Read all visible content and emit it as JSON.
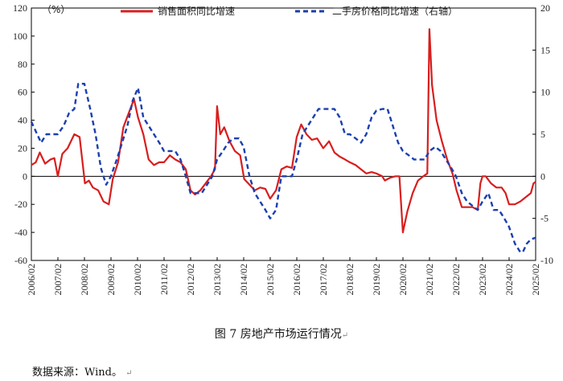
{
  "caption": "图 7  房地产市场运行情况",
  "source": "数据来源：Wind。",
  "edit_mark": "↵",
  "chart_data": {
    "type": "line",
    "unit_label": "（%）",
    "left_axis": {
      "min": -60,
      "max": 120,
      "ticks": [
        -60,
        -40,
        -20,
        0,
        20,
        40,
        60,
        80,
        100,
        120
      ]
    },
    "right_axis": {
      "min": -10,
      "max": 20,
      "ticks": [
        -10,
        -5,
        0,
        5,
        10,
        15,
        20
      ]
    },
    "x_range": [
      2006.083,
      2025.083
    ],
    "x_tick_labels": [
      "2006/02",
      "2007/02",
      "2008/02",
      "2009/02",
      "2010/02",
      "2011/02",
      "2012/02",
      "2013/02",
      "2014/02",
      "2015/02",
      "2016/02",
      "2017/02",
      "2018/02",
      "2019/02",
      "2020/02",
      "2021/02",
      "2022/02",
      "2023/02",
      "2024/02",
      "2025/02"
    ],
    "series": [
      {
        "name": "销售面积同比增速",
        "axis": "left",
        "color": "#d81e1e",
        "style": "solid",
        "points": [
          [
            2006.08,
            8
          ],
          [
            2006.25,
            10
          ],
          [
            2006.4,
            17
          ],
          [
            2006.6,
            9
          ],
          [
            2006.8,
            12
          ],
          [
            2006.95,
            13
          ],
          [
            2007.08,
            0
          ],
          [
            2007.25,
            16
          ],
          [
            2007.45,
            20
          ],
          [
            2007.7,
            30
          ],
          [
            2007.9,
            28
          ],
          [
            2008.1,
            -5
          ],
          [
            2008.25,
            -3
          ],
          [
            2008.4,
            -8
          ],
          [
            2008.6,
            -10
          ],
          [
            2008.8,
            -18
          ],
          [
            2009.0,
            -20
          ],
          [
            2009.15,
            -2
          ],
          [
            2009.35,
            10
          ],
          [
            2009.55,
            35
          ],
          [
            2009.75,
            45
          ],
          [
            2009.95,
            55
          ],
          [
            2010.1,
            42
          ],
          [
            2010.3,
            30
          ],
          [
            2010.5,
            12
          ],
          [
            2010.7,
            8
          ],
          [
            2010.9,
            10
          ],
          [
            2011.08,
            10
          ],
          [
            2011.3,
            15
          ],
          [
            2011.5,
            12
          ],
          [
            2011.7,
            10
          ],
          [
            2011.9,
            5
          ],
          [
            2012.08,
            -10
          ],
          [
            2012.25,
            -13
          ],
          [
            2012.45,
            -10
          ],
          [
            2012.65,
            -5
          ],
          [
            2012.85,
            0
          ],
          [
            2013.0,
            5
          ],
          [
            2013.08,
            50
          ],
          [
            2013.2,
            30
          ],
          [
            2013.35,
            35
          ],
          [
            2013.55,
            25
          ],
          [
            2013.75,
            18
          ],
          [
            2013.95,
            15
          ],
          [
            2014.1,
            -2
          ],
          [
            2014.3,
            -6
          ],
          [
            2014.5,
            -10
          ],
          [
            2014.7,
            -8
          ],
          [
            2014.9,
            -9
          ],
          [
            2015.08,
            -16
          ],
          [
            2015.3,
            -10
          ],
          [
            2015.5,
            5
          ],
          [
            2015.7,
            7
          ],
          [
            2015.9,
            6
          ],
          [
            2016.08,
            28
          ],
          [
            2016.25,
            37
          ],
          [
            2016.45,
            30
          ],
          [
            2016.65,
            26
          ],
          [
            2016.85,
            27
          ],
          [
            2017.08,
            20
          ],
          [
            2017.3,
            25
          ],
          [
            2017.5,
            17
          ],
          [
            2017.7,
            14
          ],
          [
            2017.9,
            12
          ],
          [
            2018.08,
            10
          ],
          [
            2018.3,
            8
          ],
          [
            2018.5,
            5
          ],
          [
            2018.7,
            2
          ],
          [
            2018.9,
            3
          ],
          [
            2019.08,
            2
          ],
          [
            2019.3,
            0
          ],
          [
            2019.4,
            -3
          ],
          [
            2019.6,
            -1
          ],
          [
            2019.8,
            0
          ],
          [
            2019.95,
            0
          ],
          [
            2020.08,
            -40
          ],
          [
            2020.25,
            -25
          ],
          [
            2020.45,
            -12
          ],
          [
            2020.65,
            -3
          ],
          [
            2020.85,
            0
          ],
          [
            2021.0,
            2
          ],
          [
            2021.08,
            105
          ],
          [
            2021.18,
            65
          ],
          [
            2021.35,
            40
          ],
          [
            2021.55,
            25
          ],
          [
            2021.75,
            12
          ],
          [
            2021.95,
            2
          ],
          [
            2022.1,
            -10
          ],
          [
            2022.3,
            -22
          ],
          [
            2022.5,
            -22
          ],
          [
            2022.7,
            -22
          ],
          [
            2022.9,
            -24
          ],
          [
            2023.0,
            -5
          ],
          [
            2023.08,
            0
          ],
          [
            2023.2,
            0
          ],
          [
            2023.4,
            -5
          ],
          [
            2023.6,
            -8
          ],
          [
            2023.8,
            -8
          ],
          [
            2023.95,
            -12
          ],
          [
            2024.08,
            -20
          ],
          [
            2024.3,
            -20
          ],
          [
            2024.5,
            -18
          ],
          [
            2024.7,
            -15
          ],
          [
            2024.9,
            -12
          ],
          [
            2025.0,
            -5
          ],
          [
            2025.08,
            -4
          ]
        ]
      },
      {
        "name": "二手房价格同比增速（右轴）",
        "axis": "right",
        "color": "#1a3fb0",
        "style": "dashed",
        "points": [
          [
            2006.08,
            6.5
          ],
          [
            2006.3,
            5
          ],
          [
            2006.45,
            4
          ],
          [
            2006.65,
            5
          ],
          [
            2006.85,
            5
          ],
          [
            2007.08,
            5
          ],
          [
            2007.3,
            6
          ],
          [
            2007.5,
            7.5
          ],
          [
            2007.7,
            8
          ],
          [
            2007.85,
            11
          ],
          [
            2008.08,
            11
          ],
          [
            2008.3,
            8
          ],
          [
            2008.5,
            5
          ],
          [
            2008.7,
            1
          ],
          [
            2008.9,
            -1
          ],
          [
            2009.08,
            0
          ],
          [
            2009.3,
            2
          ],
          [
            2009.5,
            4
          ],
          [
            2009.7,
            6
          ],
          [
            2009.9,
            9
          ],
          [
            2010.1,
            10.5
          ],
          [
            2010.3,
            7
          ],
          [
            2010.5,
            6
          ],
          [
            2010.7,
            5
          ],
          [
            2010.9,
            4
          ],
          [
            2011.08,
            3
          ],
          [
            2011.3,
            3
          ],
          [
            2011.5,
            3
          ],
          [
            2011.7,
            2
          ],
          [
            2011.9,
            0
          ],
          [
            2012.08,
            -2
          ],
          [
            2012.3,
            -2
          ],
          [
            2012.5,
            -2
          ],
          [
            2012.7,
            -1
          ],
          [
            2012.9,
            0
          ],
          [
            2013.08,
            2
          ],
          [
            2013.3,
            3
          ],
          [
            2013.5,
            4
          ],
          [
            2013.7,
            4.5
          ],
          [
            2013.9,
            4.5
          ],
          [
            2014.08,
            3.5
          ],
          [
            2014.3,
            0
          ],
          [
            2014.5,
            -2
          ],
          [
            2014.7,
            -3
          ],
          [
            2014.9,
            -4
          ],
          [
            2015.08,
            -5
          ],
          [
            2015.3,
            -4
          ],
          [
            2015.5,
            0
          ],
          [
            2015.7,
            0
          ],
          [
            2015.9,
            0
          ],
          [
            2016.08,
            2
          ],
          [
            2016.3,
            5
          ],
          [
            2016.5,
            6
          ],
          [
            2016.7,
            7
          ],
          [
            2016.9,
            8
          ],
          [
            2017.08,
            8
          ],
          [
            2017.3,
            8
          ],
          [
            2017.5,
            8
          ],
          [
            2017.7,
            7
          ],
          [
            2017.9,
            5
          ],
          [
            2018.08,
            5
          ],
          [
            2018.3,
            4.5
          ],
          [
            2018.5,
            4
          ],
          [
            2018.7,
            5
          ],
          [
            2018.9,
            7
          ],
          [
            2019.08,
            7.8
          ],
          [
            2019.3,
            8
          ],
          [
            2019.5,
            8
          ],
          [
            2019.7,
            6
          ],
          [
            2019.9,
            4
          ],
          [
            2020.08,
            3
          ],
          [
            2020.3,
            2.5
          ],
          [
            2020.5,
            2
          ],
          [
            2020.7,
            2
          ],
          [
            2020.9,
            2
          ],
          [
            2021.08,
            3
          ],
          [
            2021.3,
            3.5
          ],
          [
            2021.5,
            3
          ],
          [
            2021.7,
            2
          ],
          [
            2021.9,
            1
          ],
          [
            2022.08,
            0
          ],
          [
            2022.3,
            -2
          ],
          [
            2022.5,
            -3
          ],
          [
            2022.7,
            -3.5
          ],
          [
            2022.9,
            -4
          ],
          [
            2023.08,
            -3
          ],
          [
            2023.3,
            -2
          ],
          [
            2023.5,
            -4
          ],
          [
            2023.7,
            -4
          ],
          [
            2023.9,
            -5
          ],
          [
            2024.08,
            -6
          ],
          [
            2024.3,
            -8
          ],
          [
            2024.5,
            -9
          ],
          [
            2024.6,
            -9
          ],
          [
            2024.75,
            -8
          ],
          [
            2024.9,
            -7.5
          ],
          [
            2025.08,
            -7.3
          ]
        ]
      }
    ]
  }
}
